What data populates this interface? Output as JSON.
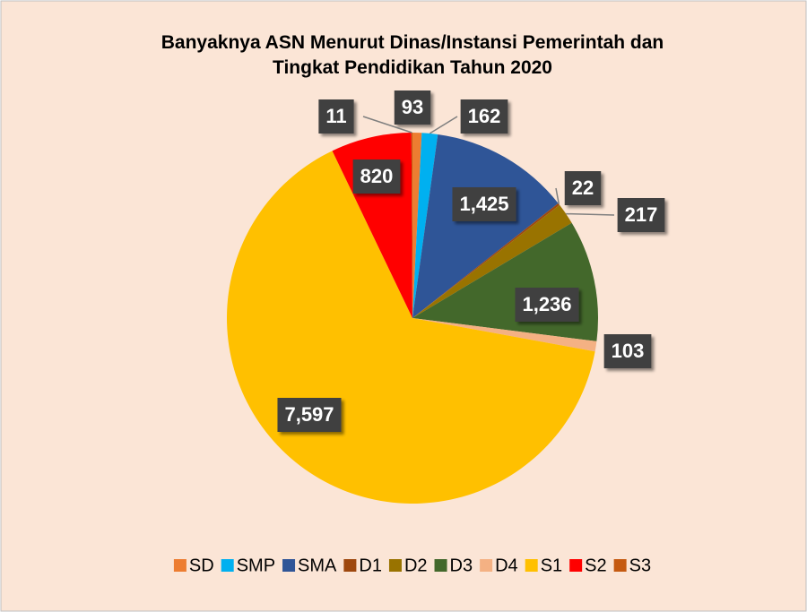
{
  "chart_data": {
    "type": "pie",
    "title": "Banyaknya ASN Menurut Dinas/Instansi Pemerintah dan Tingkat Pendidikan Tahun 2020",
    "categories": [
      "SD",
      "SMP",
      "SMA",
      "D1",
      "D2",
      "D3",
      "D4",
      "S1",
      "S2",
      "S3"
    ],
    "values": [
      93,
      162,
      1425,
      22,
      217,
      1236,
      103,
      7597,
      820,
      11
    ],
    "value_labels": [
      "93",
      "162",
      "1,425",
      "22",
      "217",
      "1,236",
      "103",
      "7,597",
      "820",
      "11"
    ],
    "colors": [
      "#ED7D31",
      "#00B0F0",
      "#2F5597",
      "#9E480E",
      "#997300",
      "#43682B",
      "#F4B183",
      "#FFC000",
      "#FF0000",
      "#C55A11"
    ],
    "legend": "bottom"
  }
}
